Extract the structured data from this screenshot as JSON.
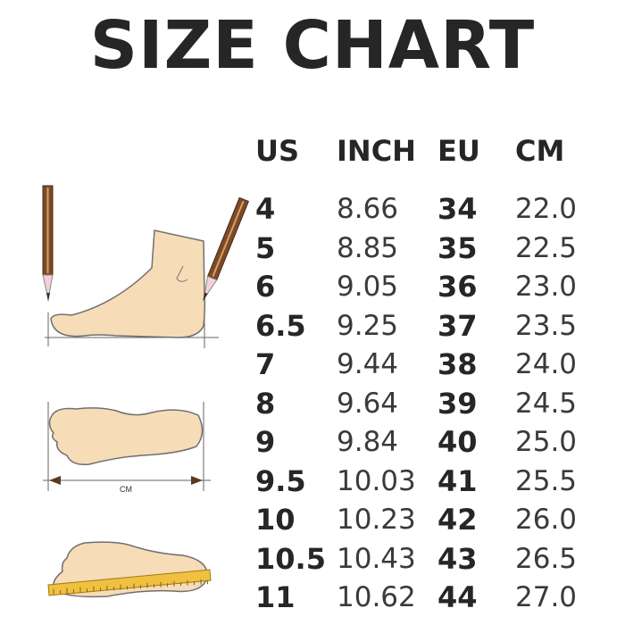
{
  "title": "SIZE CHART",
  "columns": [
    "US",
    "INCH",
    "EU",
    "CM"
  ],
  "rows": [
    [
      "4",
      "8.66",
      "34",
      "22.0"
    ],
    [
      "5",
      "8.85",
      "35",
      "22.5"
    ],
    [
      "6",
      "9.05",
      "36",
      "23.0"
    ],
    [
      "6.5",
      "9.25",
      "37",
      "23.5"
    ],
    [
      "7",
      "9.44",
      "38",
      "24.0"
    ],
    [
      "8",
      "9.64",
      "39",
      "24.5"
    ],
    [
      "9",
      "9.84",
      "40",
      "25.0"
    ],
    [
      "9.5",
      "10.03",
      "41",
      "25.5"
    ],
    [
      "10",
      "10.23",
      "42",
      "26.0"
    ],
    [
      "10.5",
      "10.43",
      "43",
      "26.5"
    ],
    [
      "11",
      "10.62",
      "44",
      "27.0"
    ]
  ],
  "illustration": {
    "measure_label": "CM"
  },
  "colors": {
    "foot": "#f7dcb8",
    "outline": "#6b6b6b",
    "pencil": "#7a4a2a",
    "ruler": "#f0c040"
  }
}
